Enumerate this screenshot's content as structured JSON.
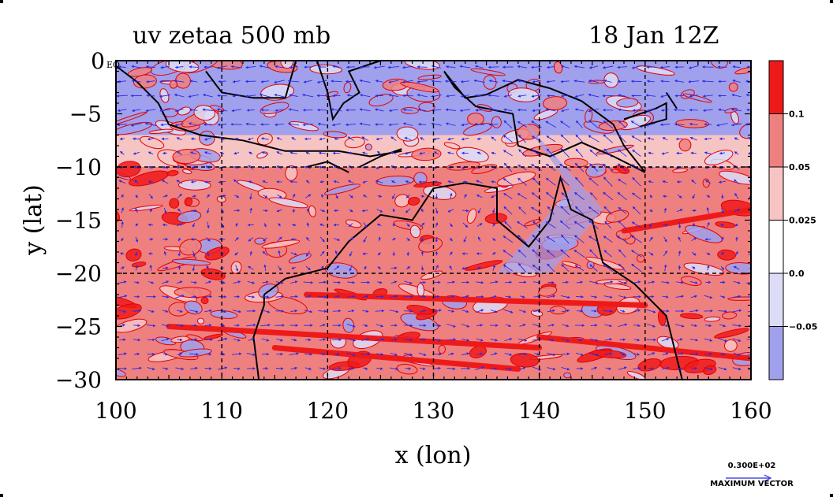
{
  "title_left": "uv zetaa 500 mb",
  "title_right": "18 Jan 12Z",
  "reference_vector": {
    "value_label": "0.300E+02",
    "caption": "MAXIMUM VECTOR"
  },
  "colors": {
    "strong_pos": "#ee1a1a",
    "pos": "#ef8080",
    "weak_pos": "#f7c4c4",
    "neutral": "#ffffff",
    "weak_neg": "#dcdcf7",
    "neg": "#a0a0ec",
    "vector": "#2a2ae8",
    "coast": "#000000"
  },
  "chart_data": {
    "type": "heatmap",
    "title": "uv zetaa 500 mb",
    "date_label": "18 Jan 12Z",
    "xlabel": "x (lon)",
    "ylabel": "y (lat)",
    "xlim": [
      100,
      160
    ],
    "ylim": [
      -30,
      0
    ],
    "x_ticks": [
      "100",
      "110",
      "120",
      "130",
      "140",
      "150",
      "160"
    ],
    "y_ticks": [
      "0 EQ",
      "−5",
      "−10",
      "−15",
      "−20",
      "−25",
      "−30"
    ],
    "grid": true,
    "colorbar": {
      "labels": [
        "0.1",
        "0.05",
        "0.025",
        "0.0",
        "−0.05"
      ]
    },
    "field_bands": [
      {
        "lat_from": 0,
        "lat_to": -7,
        "level": "neg"
      },
      {
        "lat_from": -7,
        "lat_to": -10,
        "level": "weak_pos"
      },
      {
        "lat_from": -10,
        "lat_to": -20,
        "level": "pos"
      },
      {
        "lat_from": -20,
        "lat_to": -30,
        "level": "pos"
      }
    ],
    "overlays": [
      "wind vectors (u,v)",
      "coastlines"
    ]
  }
}
